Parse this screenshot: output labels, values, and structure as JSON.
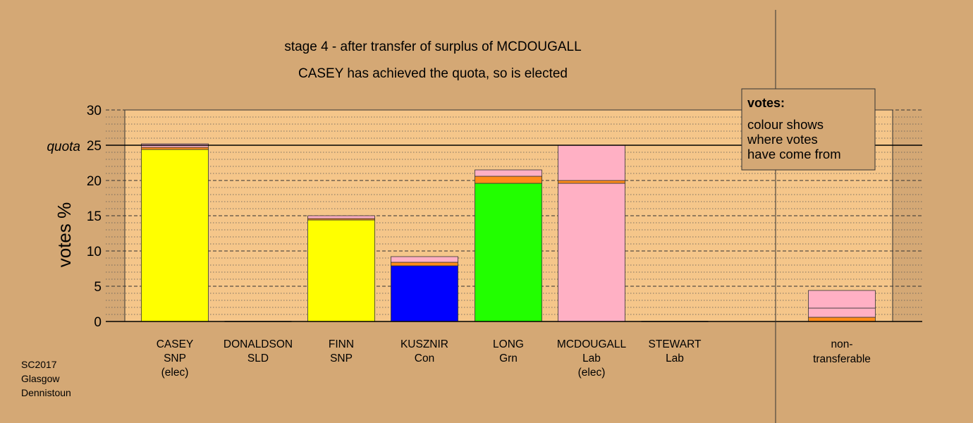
{
  "chart_data": {
    "type": "bar",
    "stacked": true,
    "title": "stage 4 - after transfer of surplus of MCDOUGALL",
    "subtitle": "CASEY has achieved the quota, so is elected",
    "ylabel": "votes %",
    "ylim": [
      0,
      30
    ],
    "yticks": [
      "0",
      "5",
      "10",
      "15",
      "20",
      "25",
      "30"
    ],
    "quota": {
      "label": "quota",
      "value": 25
    },
    "grid": true,
    "categories": [
      {
        "name": "CASEY",
        "party": "SNP",
        "status": "(elec)"
      },
      {
        "name": "DONALDSON",
        "party": "SLD",
        "status": ""
      },
      {
        "name": "FINN",
        "party": "SNP",
        "status": ""
      },
      {
        "name": "KUSZNIR",
        "party": "Con",
        "status": ""
      },
      {
        "name": "LONG",
        "party": "Grn",
        "status": ""
      },
      {
        "name": "MCDOUGALL",
        "party": "Lab",
        "status": "(elec)"
      },
      {
        "name": "STEWART",
        "party": "Lab",
        "status": ""
      }
    ],
    "bars": [
      [
        {
          "value": 24.4,
          "color": "#ffff00"
        },
        {
          "value": 0.3,
          "color": "#ff8c1a"
        },
        {
          "value": 0.5,
          "color": "#ffb0c4"
        }
      ],
      [],
      [
        {
          "value": 14.4,
          "color": "#ffff00"
        },
        {
          "value": 0.2,
          "color": "#ff8c1a"
        },
        {
          "value": 0.4,
          "color": "#ffb0c4"
        }
      ],
      [
        {
          "value": 7.9,
          "color": "#0000ff"
        },
        {
          "value": 0.5,
          "color": "#ff8c1a"
        },
        {
          "value": 0.8,
          "color": "#ffb0c4"
        }
      ],
      [
        {
          "value": 19.6,
          "color": "#22ff00"
        },
        {
          "value": 1.0,
          "color": "#ff8c1a"
        },
        {
          "value": 0.9,
          "color": "#ffb0c4"
        }
      ],
      [
        {
          "value": 19.6,
          "color": "#ffb0c4"
        },
        {
          "value": 0.4,
          "color": "#ff8c1a"
        },
        {
          "value": 5.0,
          "color": "#ffb0c4"
        }
      ],
      []
    ],
    "nontransferable": {
      "label_line1": "non-",
      "label_line2": "transferable",
      "segments": [
        {
          "value": 0.6,
          "color": "#ff8c1a"
        },
        {
          "value": 1.3,
          "color": "#ffb0c4"
        },
        {
          "value": 2.5,
          "color": "#ffb0c4"
        }
      ]
    },
    "legend": {
      "heading": "votes:",
      "lines": [
        "colour shows",
        "where votes",
        "have come from"
      ],
      "placement": "top-right"
    }
  },
  "footer": {
    "line1": "SC2017",
    "line2": "Glasgow",
    "line3": "Dennistoun"
  },
  "colors": {
    "background": "#d4a875",
    "plot_background": "#f5c68a"
  }
}
